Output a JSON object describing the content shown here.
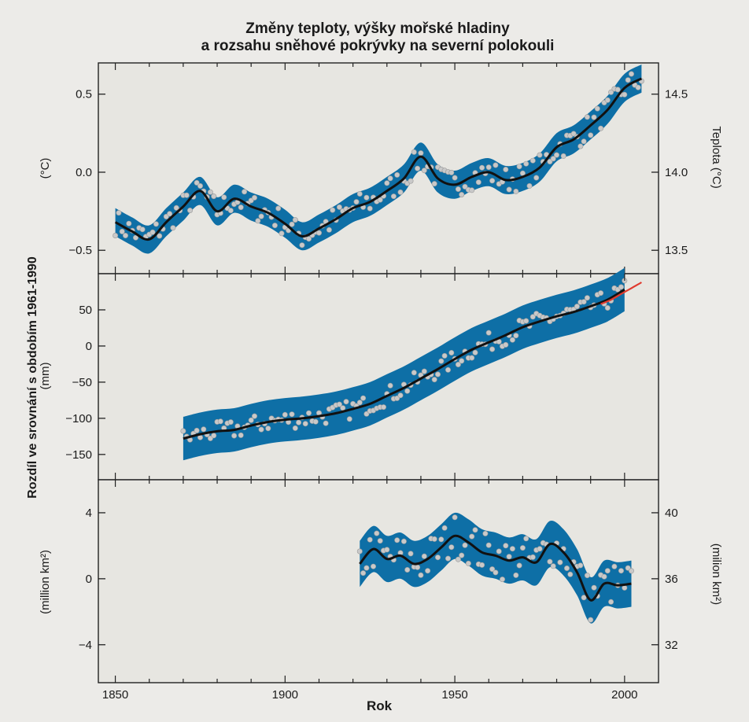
{
  "chart_data": {
    "type": "line",
    "title_line1": "Změny teploty, výšky mořské hladiny",
    "title_line2": "a rozsahu sněhové pokrývky na severní polokouli",
    "shared_ylabel": "Rozdíl ve srovnání s obdobím 1961-1990",
    "xlabel": "Rok",
    "xlim": [
      1845,
      2010
    ],
    "xticks": [
      1850,
      1900,
      1950,
      2000
    ],
    "colors": {
      "band": "#0e6fa6",
      "line": "#111111",
      "points": "#c9c9c9",
      "satellite": "#e03a2e",
      "background": "#e7e6e1"
    },
    "panels": [
      {
        "id": "temperature",
        "ylabel_left": "(°C)",
        "ylabel_right": "Teplota (°C)",
        "ylim": [
          -0.65,
          0.7
        ],
        "yticks_left": [
          -0.5,
          0.0,
          0.5
        ],
        "yticks_left_labels": [
          "−0.5",
          "0.0",
          "0.5"
        ],
        "yticks_right": [
          -0.5,
          0.0,
          0.5
        ],
        "yticks_right_labels": [
          "13.5",
          "14.0",
          "14.5"
        ],
        "band_halfwidth": 0.09,
        "smooth": {
          "x": [
            1850,
            1855,
            1860,
            1865,
            1870,
            1875,
            1880,
            1885,
            1890,
            1895,
            1900,
            1905,
            1910,
            1915,
            1920,
            1925,
            1930,
            1935,
            1940,
            1945,
            1950,
            1955,
            1960,
            1965,
            1970,
            1975,
            1980,
            1985,
            1990,
            1995,
            2000,
            2005
          ],
          "y": [
            -0.32,
            -0.38,
            -0.43,
            -0.32,
            -0.22,
            -0.12,
            -0.25,
            -0.17,
            -0.22,
            -0.26,
            -0.33,
            -0.41,
            -0.36,
            -0.3,
            -0.23,
            -0.19,
            -0.12,
            -0.04,
            0.1,
            -0.04,
            -0.08,
            -0.03,
            0.0,
            -0.05,
            -0.03,
            0.03,
            0.16,
            0.21,
            0.3,
            0.4,
            0.54,
            0.6
          ]
        }
      },
      {
        "id": "sea_level",
        "ylabel_left": "(mm)",
        "ylim": [
          -185,
          100
        ],
        "yticks_left": [
          -150,
          -100,
          -50,
          0,
          50
        ],
        "yticks_left_labels": [
          "−150",
          "−100",
          "−50",
          "0",
          "50"
        ],
        "band_halfwidth": 30,
        "smooth": {
          "x": [
            1870,
            1875,
            1880,
            1885,
            1890,
            1895,
            1900,
            1905,
            1910,
            1915,
            1920,
            1925,
            1930,
            1935,
            1940,
            1945,
            1950,
            1955,
            1960,
            1965,
            1970,
            1975,
            1980,
            1985,
            1990,
            1995,
            2000
          ],
          "y": [
            -128,
            -122,
            -118,
            -116,
            -110,
            -105,
            -102,
            -100,
            -97,
            -93,
            -87,
            -80,
            -69,
            -58,
            -45,
            -32,
            -18,
            -5,
            5,
            15,
            26,
            34,
            41,
            47,
            55,
            64,
            78
          ]
        },
        "satellite": {
          "x": [
            1993,
            1996,
            1999,
            2002,
            2005
          ],
          "y": [
            58,
            64,
            72,
            80,
            88
          ]
        }
      },
      {
        "id": "snow_cover",
        "ylabel_left": "(million km²)",
        "ylabel_right": "(milion km²)",
        "ylim": [
          -6.3,
          6
        ],
        "yticks_left": [
          -4,
          0,
          4
        ],
        "yticks_left_labels": [
          "−4",
          "0",
          "4"
        ],
        "yticks_right": [
          -4,
          0,
          4
        ],
        "yticks_right_labels": [
          "32",
          "36",
          "40"
        ],
        "band_halfwidth": 1.4,
        "smooth": {
          "x": [
            1922,
            1926,
            1930,
            1934,
            1938,
            1942,
            1946,
            1950,
            1954,
            1958,
            1962,
            1966,
            1970,
            1974,
            1978,
            1982,
            1986,
            1990,
            1994,
            1998,
            2002
          ],
          "y": [
            0.9,
            1.8,
            1.2,
            1.4,
            0.9,
            1.2,
            1.9,
            2.6,
            2.2,
            1.6,
            1.4,
            1.1,
            1.3,
            1.0,
            2.1,
            1.6,
            0.4,
            -1.3,
            -0.3,
            -0.4,
            -0.3
          ]
        }
      }
    ]
  }
}
